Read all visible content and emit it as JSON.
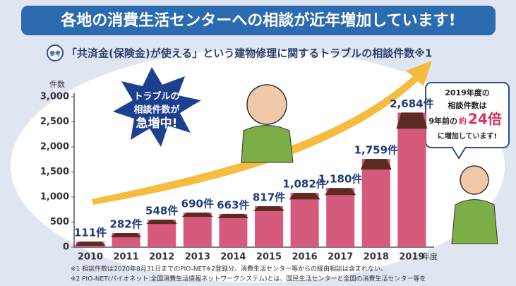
{
  "chart_data": {
    "type": "bar",
    "title": "各地の消費生活センターへの相談が近年増加しています!",
    "badge": "参考",
    "subtitle": "「共済金(保険金)が使える」という建物修理に関するトラブルの相談件数※1",
    "y_label": "件数",
    "x_label": "年度",
    "categories": [
      "2010",
      "2011",
      "2012",
      "2013",
      "2014",
      "2015",
      "2016",
      "2017",
      "2018",
      "2019"
    ],
    "values": [
      111,
      282,
      548,
      690,
      663,
      817,
      1082,
      1180,
      1759,
      2684
    ],
    "value_labels": [
      "111件",
      "282件",
      "548件",
      "690件",
      "663件",
      "817件",
      "1,082件",
      "1,180件",
      "1,759件",
      "2,684件"
    ],
    "color": "#d65a7c",
    "cap_color": "#5b2a20",
    "ylim": [
      0,
      3000
    ],
    "yticks": [
      0,
      500,
      {
        "value": 1000,
        "label": "1,000"
      },
      {
        "value": 1500,
        "label": "1,500"
      },
      {
        "value": 2000,
        "label": "2,000"
      },
      {
        "value": 2500,
        "label": "2,500"
      },
      {
        "value": 3000,
        "label": "3,000"
      }
    ],
    "grid": false,
    "burst_lines": [
      "トラブルの",
      "相談件数が",
      "急増中!"
    ],
    "callout_lines": [
      "2019年度の",
      "相談件数は",
      "9年前の",
      "約",
      "24倍",
      "に増加しています!"
    ],
    "footnotes": [
      "※1 相談件数は2020年8月31日までのPIO-NET※2登録分。消費生活センター等からの経由相談は含まれない。",
      "※2 PIO-NET(パイオネット:全国消費生活情報ネットワークシステム)とは、国民生活センターと全国の消費生活センター等を"
    ]
  }
}
